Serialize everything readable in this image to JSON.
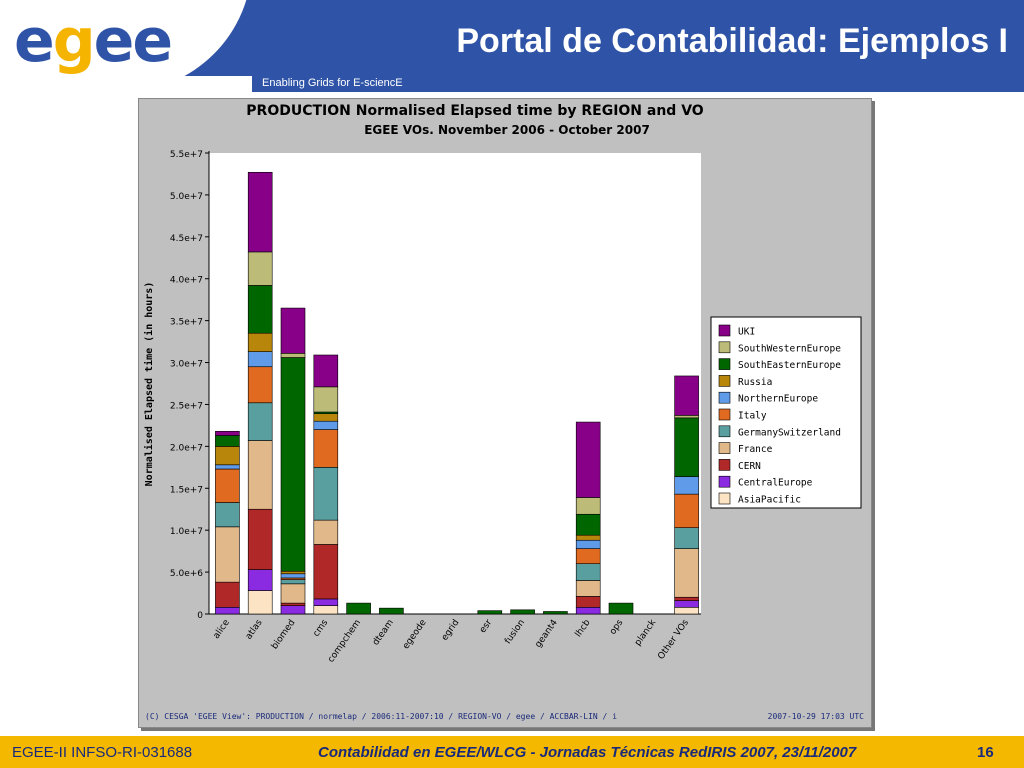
{
  "header": {
    "logo_part1": "e",
    "logo_part2": "g",
    "logo_part3": "ee",
    "title": "Portal de Contabilidad: Ejemplos I",
    "subtitle": "Enabling Grids for E-sciencE"
  },
  "footer": {
    "left": "EGEE-II INFSO-RI-031688",
    "center": "Contabilidad en EGEE/WLCG - Jornadas Técnicas RedIRIS 2007, 23/11/2007",
    "page": "16"
  },
  "colors": {
    "header_blue": "#2f54a7",
    "footer_yellow": "#f5b800",
    "UKI": "#880088",
    "SouthWesternEurope": "#bcbc78",
    "SouthEasternEurope": "#006600",
    "Russia": "#b8860b",
    "NorthernEurope": "#5f9be8",
    "Italy": "#e06a20",
    "GermanySwitzerland": "#5a9fa0",
    "France": "#e0b88a",
    "CERN": "#b02828",
    "CentralEurope": "#8a2be2",
    "AsiaPacific": "#fbe3c4"
  },
  "chart_data": {
    "type": "bar",
    "stacked": true,
    "title": "PRODUCTION Normalised Elapsed time by REGION and VO",
    "subtitle": "EGEE VOs. November 2006 - October 2007",
    "ylabel": "Normalised Elapsed time (in hours)",
    "xlabel": "",
    "ylim": [
      0,
      55000000
    ],
    "yticks": [
      "0",
      "5.0e+6",
      "1.0e+7",
      "1.5e+7",
      "2.0e+7",
      "2.5e+7",
      "3.0e+7",
      "3.5e+7",
      "4.0e+7",
      "4.5e+7",
      "5.0e+7",
      "5.5e+7"
    ],
    "grid": false,
    "legend_position": "right",
    "footer_left": "(C) CESGA 'EGEE View': PRODUCTION / normelap / 2006:11-2007:10 / REGION-VO / egee / ACCBAR-LIN / i",
    "footer_right": "2007-10-29 17:03 UTC",
    "categories": [
      "alice",
      "atlas",
      "biomed",
      "cms",
      "compchem",
      "dteam",
      "egeode",
      "egrid",
      "esr",
      "fusion",
      "geant4",
      "lhcb",
      "ops",
      "planck",
      "Other VOs"
    ],
    "series": [
      {
        "name": "AsiaPacific",
        "values": [
          0,
          2800000,
          0,
          1000000,
          0,
          0,
          0,
          0,
          0,
          0,
          0,
          0,
          0,
          0,
          800000
        ]
      },
      {
        "name": "CentralEurope",
        "values": [
          800000,
          2500000,
          1000000,
          800000,
          0,
          0,
          0,
          0,
          0,
          0,
          0,
          800000,
          0,
          0,
          800000
        ]
      },
      {
        "name": "CERN",
        "values": [
          3000000,
          7200000,
          300000,
          6500000,
          0,
          0,
          0,
          0,
          0,
          0,
          0,
          1300000,
          0,
          0,
          400000
        ]
      },
      {
        "name": "France",
        "values": [
          6600000,
          8200000,
          2300000,
          2900000,
          0,
          0,
          0,
          0,
          0,
          0,
          0,
          1900000,
          0,
          0,
          5800000
        ]
      },
      {
        "name": "GermanySwitzerland",
        "values": [
          2900000,
          4500000,
          500000,
          6300000,
          0,
          0,
          0,
          0,
          0,
          0,
          0,
          2000000,
          0,
          0,
          2500000
        ]
      },
      {
        "name": "Italy",
        "values": [
          4000000,
          4300000,
          200000,
          4500000,
          0,
          0,
          0,
          0,
          0,
          0,
          0,
          1800000,
          0,
          0,
          4000000
        ]
      },
      {
        "name": "NorthernEurope",
        "values": [
          500000,
          1800000,
          500000,
          1000000,
          0,
          0,
          0,
          0,
          0,
          0,
          0,
          1000000,
          0,
          0,
          2100000
        ]
      },
      {
        "name": "Russia",
        "values": [
          2200000,
          2200000,
          300000,
          900000,
          0,
          0,
          0,
          0,
          0,
          0,
          0,
          600000,
          0,
          0,
          0
        ]
      },
      {
        "name": "SouthEasternEurope",
        "values": [
          1300000,
          5700000,
          25500000,
          200000,
          1300000,
          700000,
          0,
          0,
          400000,
          500000,
          300000,
          2500000,
          1300000,
          0,
          7000000
        ]
      },
      {
        "name": "SouthWesternEurope",
        "values": [
          0,
          4000000,
          500000,
          3000000,
          0,
          0,
          0,
          0,
          0,
          0,
          0,
          2000000,
          0,
          0,
          300000
        ]
      },
      {
        "name": "UKI",
        "values": [
          500000,
          9500000,
          5400000,
          3800000,
          0,
          0,
          0,
          0,
          0,
          0,
          0,
          9000000,
          0,
          0,
          4700000
        ]
      }
    ],
    "legend_order": [
      "UKI",
      "SouthWesternEurope",
      "SouthEasternEurope",
      "Russia",
      "NorthernEurope",
      "Italy",
      "GermanySwitzerland",
      "France",
      "CERN",
      "CentralEurope",
      "AsiaPacific"
    ]
  }
}
